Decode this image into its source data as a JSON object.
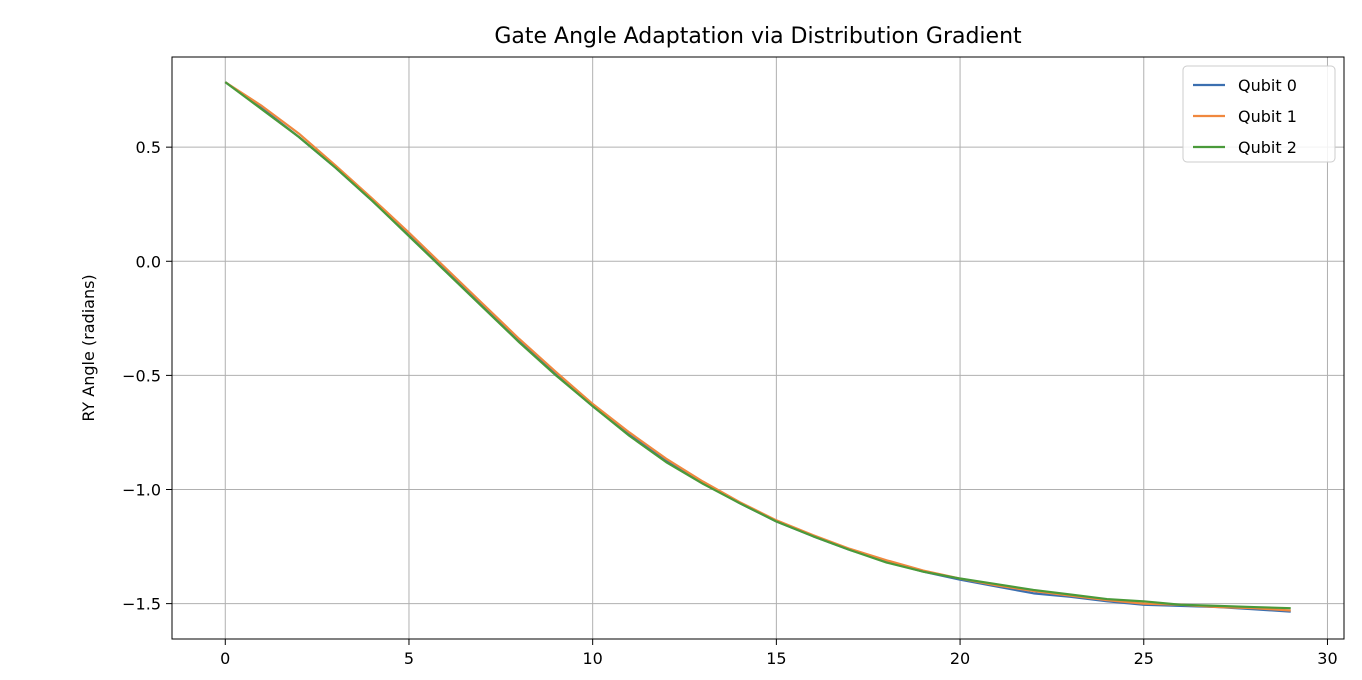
{
  "chart_data": {
    "type": "line",
    "title": "Gate Angle Adaptation via Distribution Gradient",
    "xlabel": "",
    "ylabel": "RY Angle (radians)",
    "xlim": [
      -1.45,
      30.45
    ],
    "ylim": [
      -1.655,
      0.895
    ],
    "xticks": [
      0,
      5,
      10,
      15,
      20,
      25,
      30
    ],
    "yticks": [
      0.5,
      0.0,
      -0.5,
      -1.0,
      -1.5
    ],
    "ytick_labels": [
      "0.5",
      "0.0",
      "−0.5",
      "−1.0",
      "−1.5"
    ],
    "grid": true,
    "legend_position": "top-right",
    "x": [
      0,
      1,
      2,
      3,
      4,
      5,
      6,
      7,
      8,
      9,
      10,
      11,
      12,
      13,
      14,
      15,
      16,
      17,
      18,
      19,
      20,
      21,
      22,
      23,
      24,
      25,
      26,
      27,
      28,
      29
    ],
    "series": [
      {
        "name": "Qubit 0",
        "color": "#3b6fb0",
        "values": [
          0.785,
          0.67,
          0.545,
          0.41,
          0.265,
          0.115,
          -0.04,
          -0.195,
          -0.35,
          -0.495,
          -0.635,
          -0.76,
          -0.875,
          -0.97,
          -1.06,
          -1.14,
          -1.205,
          -1.265,
          -1.315,
          -1.36,
          -1.395,
          -1.425,
          -1.455,
          -1.47,
          -1.49,
          -1.505,
          -1.51,
          -1.515,
          -1.525,
          -1.535
        ]
      },
      {
        "name": "Qubit 1",
        "color": "#f0883e",
        "values": [
          0.785,
          0.68,
          0.56,
          0.42,
          0.275,
          0.125,
          -0.03,
          -0.185,
          -0.34,
          -0.485,
          -0.625,
          -0.75,
          -0.865,
          -0.965,
          -1.055,
          -1.135,
          -1.2,
          -1.26,
          -1.31,
          -1.355,
          -1.39,
          -1.42,
          -1.445,
          -1.465,
          -1.485,
          -1.5,
          -1.505,
          -1.515,
          -1.52,
          -1.53
        ]
      },
      {
        "name": "Qubit 2",
        "color": "#4a9a3a",
        "values": [
          0.785,
          0.665,
          0.545,
          0.41,
          0.265,
          0.11,
          -0.045,
          -0.2,
          -0.355,
          -0.5,
          -0.635,
          -0.765,
          -0.88,
          -0.975,
          -1.06,
          -1.14,
          -1.205,
          -1.265,
          -1.32,
          -1.36,
          -1.39,
          -1.415,
          -1.44,
          -1.46,
          -1.48,
          -1.49,
          -1.505,
          -1.51,
          -1.515,
          -1.52
        ]
      }
    ]
  }
}
